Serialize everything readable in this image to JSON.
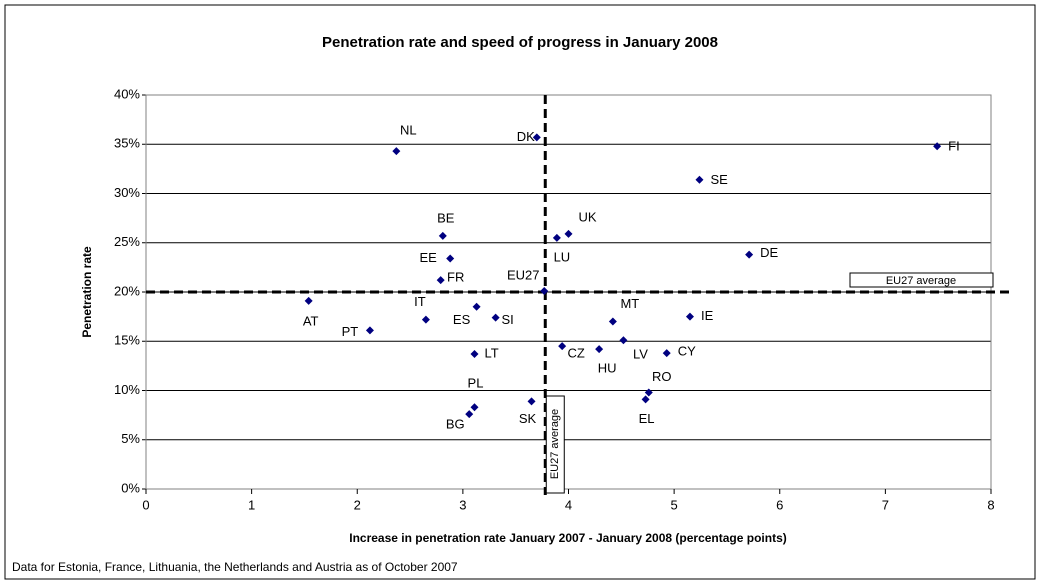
{
  "chart_data": {
    "type": "scatter",
    "title": "Penetration rate and speed of progress in January 2008",
    "x_label": "Increase in penetration rate January 2007 - January 2008 (percentage points)",
    "y_label": "Penetration rate",
    "note": "Data for Estonia, France, Lithuania, the Netherlands and Austria as of October 2007",
    "color": "#000080",
    "point_labels": [
      "NL",
      "DK",
      "FI",
      "SE",
      "BE",
      "UK",
      "LU",
      "EE",
      "DE",
      "FR",
      "EU27",
      "AT",
      "ES",
      "IT",
      "SI",
      "MT",
      "IE",
      "PT",
      "LV",
      "CZ",
      "HU",
      "CY",
      "LT",
      "RO",
      "EL",
      "SK",
      "PL",
      "BG"
    ],
    "x": [
      2.37,
      3.7,
      7.49,
      5.24,
      2.81,
      4.0,
      3.89,
      2.88,
      5.71,
      2.79,
      3.77,
      1.54,
      3.13,
      2.65,
      3.31,
      4.42,
      5.15,
      2.12,
      4.52,
      3.94,
      4.29,
      4.93,
      3.11,
      4.76,
      4.73,
      3.65,
      3.11,
      3.06
    ],
    "values": [
      34.3,
      35.7,
      34.8,
      31.4,
      25.7,
      25.9,
      25.5,
      23.4,
      23.8,
      21.2,
      20.1,
      19.1,
      18.5,
      17.2,
      17.4,
      17.0,
      17.5,
      16.1,
      15.1,
      14.5,
      14.2,
      13.8,
      13.7,
      9.8,
      9.1,
      8.9,
      8.3,
      7.6
    ],
    "reference_lines": {
      "x": 3.78,
      "y": 20,
      "label": "EU27 average"
    },
    "xlim": [
      0,
      8
    ],
    "xticks": [
      0,
      1,
      2,
      3,
      4,
      5,
      6,
      7,
      8
    ],
    "ylim": [
      0,
      40
    ],
    "yticks": [
      {
        "value": 0,
        "label": "0%"
      },
      {
        "value": 5,
        "label": "5%"
      },
      {
        "value": 10,
        "label": "10%"
      },
      {
        "value": 15,
        "label": "15%"
      },
      {
        "value": 20,
        "label": "20%"
      },
      {
        "value": 25,
        "label": "25%"
      },
      {
        "value": 30,
        "label": "30%"
      },
      {
        "value": 35,
        "label": "35%"
      },
      {
        "value": 40,
        "label": "40%"
      }
    ],
    "grid": true
  }
}
